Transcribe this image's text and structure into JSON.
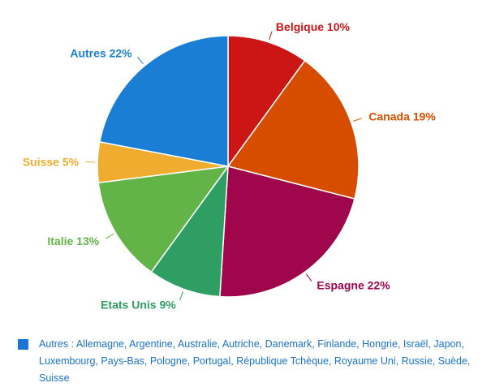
{
  "chart_data": {
    "type": "pie",
    "title": "",
    "slices": [
      {
        "label": "Belgique",
        "value": 10,
        "text": "Belgique 10%",
        "color": "#cc1616"
      },
      {
        "label": "Canada",
        "value": 19,
        "text": "Canada 19%",
        "color": "#d64d00"
      },
      {
        "label": "Espagne",
        "value": 22,
        "text": "Espagne 22%",
        "color": "#a0064c"
      },
      {
        "label": "Etats Unis",
        "value": 9,
        "text": "Etats Unis 9%",
        "color": "#2f9e63"
      },
      {
        "label": "Italie",
        "value": 13,
        "text": "Italie 13%",
        "color": "#62b448"
      },
      {
        "label": "Suisse",
        "value": 5,
        "text": "Suisse 5%",
        "color": "#f0ac2f"
      },
      {
        "label": "Autres",
        "value": 22,
        "text": "Autres 22%",
        "color": "#1a7fd4"
      }
    ],
    "legend": "bottom-left"
  },
  "footnote": {
    "text": "Autres : Allemagne, Argentine, Australie, Autriche, Danemark, Finlande, Hongrie, Israël, Japon, Luxembourg, Pays-Bas, Pologne, Portugal, République Tchèque, Royaume Uni, Russie, Suède, Suisse",
    "swatch_color": "#1976d2"
  }
}
